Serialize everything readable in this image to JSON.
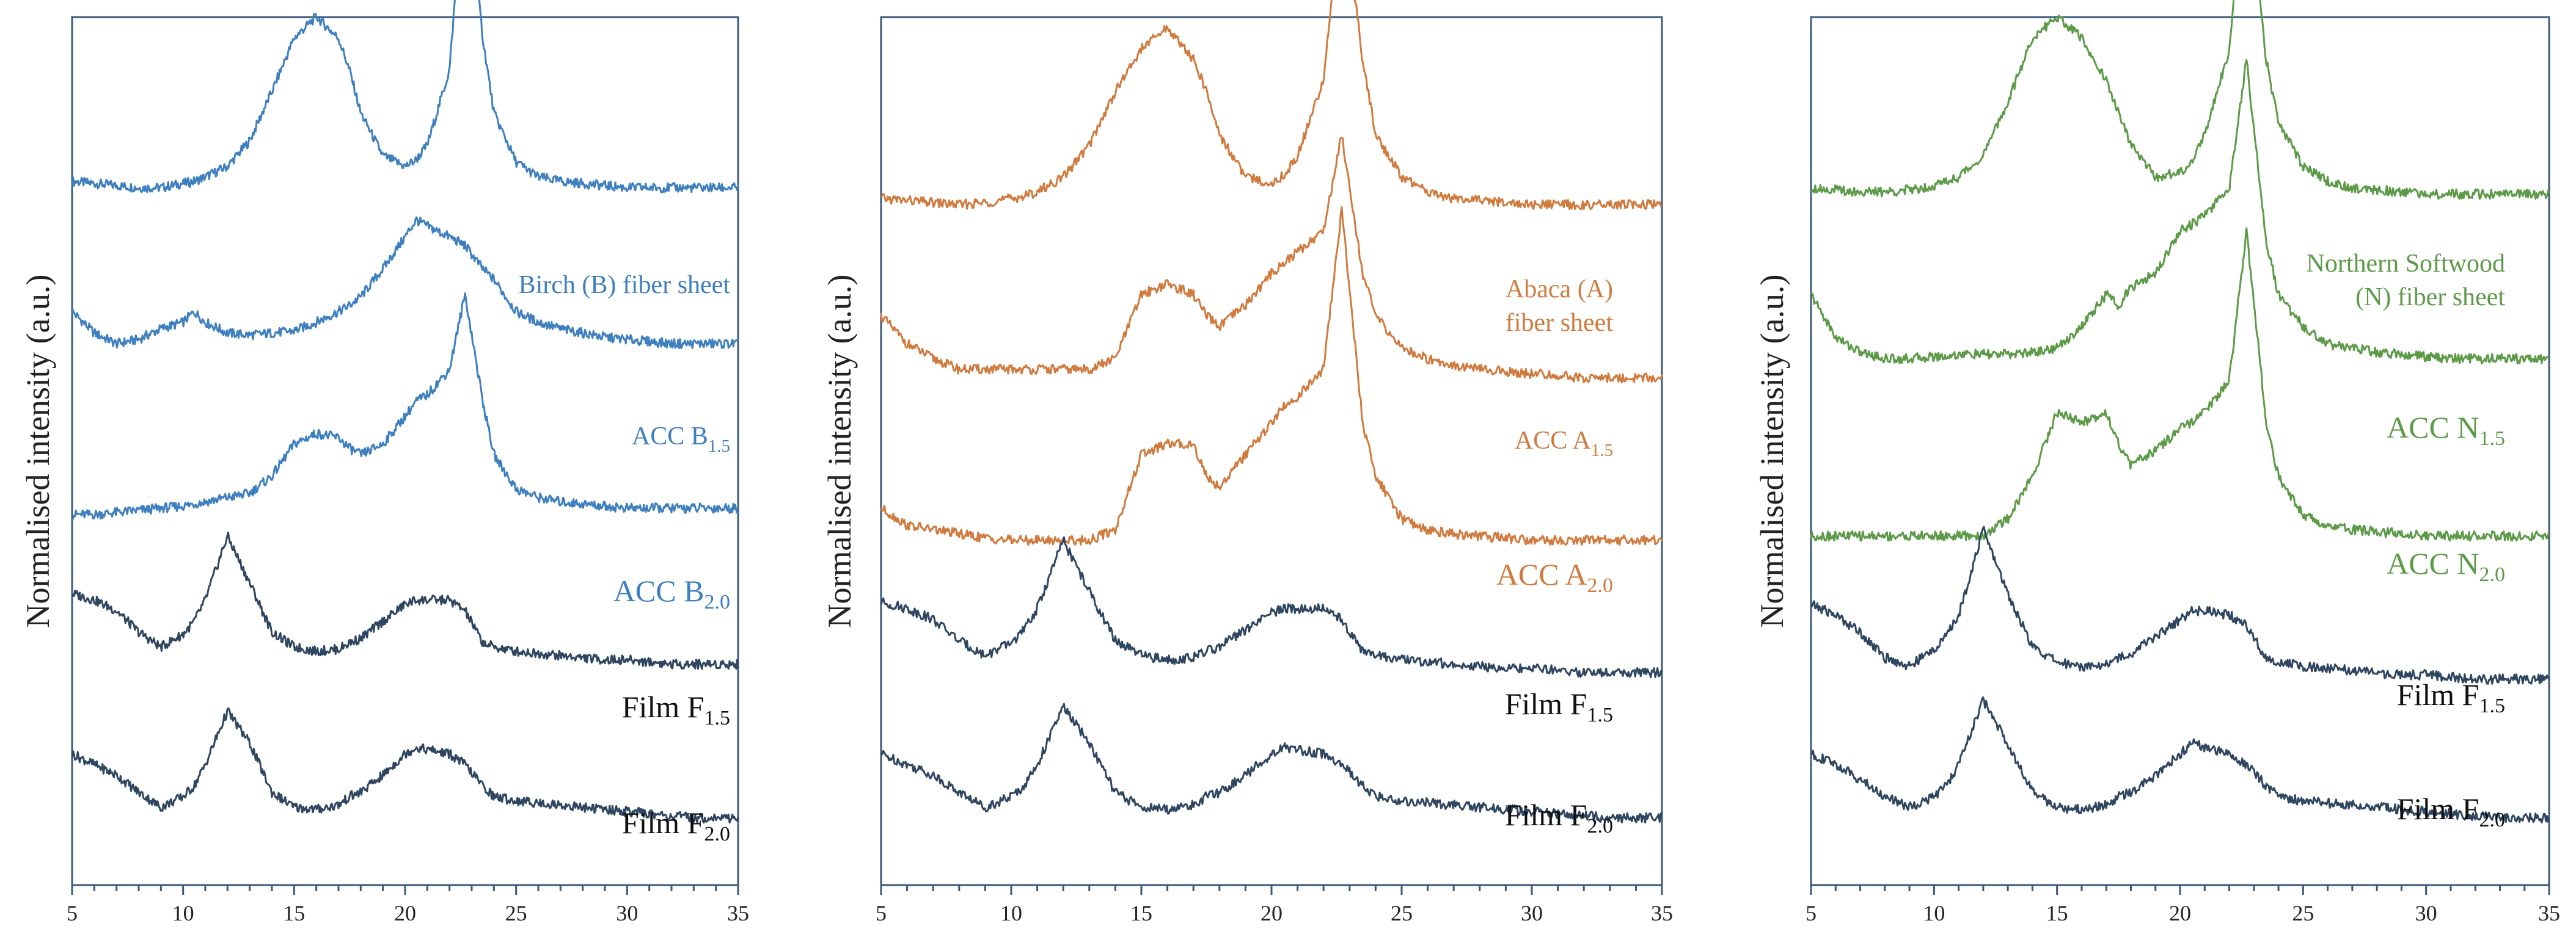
{
  "chart_data": [
    {
      "type": "line",
      "panel": "birch",
      "ylabel": "Normalised intensity (a.u.)",
      "xlabel": "",
      "xlim": [
        5,
        35
      ],
      "xticks": [
        5,
        10,
        15,
        20,
        25,
        30,
        35
      ],
      "x": [
        5,
        6,
        7,
        8,
        9,
        10,
        10.5,
        11,
        12,
        13,
        14,
        15,
        16,
        17,
        17.5,
        18,
        19,
        20,
        20.5,
        21,
        22,
        22.7,
        23.5,
        24,
        25,
        26,
        27,
        28,
        29,
        30,
        31,
        32,
        33,
        34,
        35
      ],
      "series": [
        {
          "name": "Birch (B) fiber sheet",
          "label_main": "Birch (B) fiber sheet",
          "label_sub": "",
          "label_size": "small",
          "color": "#3e7fbf",
          "offset": 3.15,
          "values": [
            0.03,
            0.02,
            0.01,
            0.0,
            0.0,
            0.02,
            0.03,
            0.05,
            0.1,
            0.22,
            0.45,
            0.7,
            0.8,
            0.7,
            0.55,
            0.35,
            0.15,
            0.1,
            0.13,
            0.2,
            0.55,
            1.5,
            0.7,
            0.35,
            0.12,
            0.05,
            0.03,
            0.02,
            0.01,
            0.0,
            0.0,
            0.0,
            0.0,
            0.0,
            0.0
          ]
        },
        {
          "name": "ACC B1.5",
          "label_main": "ACC B",
          "label_sub": "1.5",
          "label_size": "small",
          "color": "#3e7fbf",
          "offset": 2.42,
          "values": [
            0.15,
            0.05,
            0.0,
            0.02,
            0.07,
            0.1,
            0.15,
            0.1,
            0.05,
            0.04,
            0.05,
            0.06,
            0.1,
            0.15,
            0.18,
            0.22,
            0.35,
            0.5,
            0.58,
            0.55,
            0.5,
            0.46,
            0.35,
            0.3,
            0.15,
            0.1,
            0.07,
            0.05,
            0.03,
            0.02,
            0.01,
            0.0,
            0.0,
            0.0,
            0.0
          ]
        },
        {
          "name": "ACC B2.0",
          "label_main": "ACC B",
          "label_sub": "2.0",
          "label_size": "large",
          "color": "#3e7fbf",
          "offset": 1.6,
          "values": [
            0.02,
            0.02,
            0.03,
            0.04,
            0.05,
            0.06,
            0.07,
            0.08,
            0.1,
            0.12,
            0.2,
            0.35,
            0.4,
            0.38,
            0.33,
            0.3,
            0.35,
            0.48,
            0.55,
            0.58,
            0.7,
            1.05,
            0.55,
            0.3,
            0.14,
            0.1,
            0.08,
            0.07,
            0.06,
            0.05,
            0.05,
            0.05,
            0.05,
            0.05,
            0.05
          ]
        },
        {
          "name": "Film F1.5",
          "label_main": "Film F",
          "label_sub": "1.5",
          "label_size": "large",
          "color": "#2f4661",
          "offset": 0.92,
          "values": [
            0.33,
            0.3,
            0.25,
            0.15,
            0.08,
            0.14,
            0.2,
            0.3,
            0.6,
            0.38,
            0.15,
            0.08,
            0.06,
            0.07,
            0.1,
            0.12,
            0.2,
            0.28,
            0.3,
            0.3,
            0.3,
            0.25,
            0.1,
            0.08,
            0.06,
            0.05,
            0.04,
            0.03,
            0.02,
            0.02,
            0.01,
            0.0,
            0.0,
            0.0,
            0.0
          ]
        },
        {
          "name": "Film F2.0",
          "label_main": "Film F",
          "label_sub": "2.0",
          "label_size": "large",
          "color": "#2f4661",
          "offset": 0.2,
          "values": [
            0.3,
            0.25,
            0.2,
            0.12,
            0.05,
            0.1,
            0.15,
            0.25,
            0.5,
            0.35,
            0.12,
            0.05,
            0.04,
            0.06,
            0.1,
            0.12,
            0.2,
            0.3,
            0.33,
            0.32,
            0.3,
            0.25,
            0.15,
            0.1,
            0.08,
            0.07,
            0.06,
            0.05,
            0.04,
            0.03,
            0.02,
            0.01,
            0.0,
            0.0,
            0.0
          ]
        }
      ]
    },
    {
      "type": "line",
      "panel": "abaca",
      "ylabel": "Normalised intensity (a.u.)",
      "xlabel": "",
      "xlim": [
        5,
        35
      ],
      "xticks": [
        5,
        10,
        15,
        20,
        25,
        30,
        35
      ],
      "x": [
        5,
        6,
        7,
        8,
        9,
        10,
        10.5,
        11,
        12,
        13,
        14,
        15,
        16,
        17,
        17.5,
        18,
        19,
        20,
        20.5,
        21,
        22,
        22.7,
        23.5,
        24,
        25,
        26,
        27,
        28,
        29,
        30,
        31,
        32,
        33,
        34,
        35
      ],
      "series": [
        {
          "name": "Abaca (A) fiber sheet",
          "label_main": "Abaca (A)",
          "label_line2": "fiber sheet",
          "label_sub": "",
          "label_size": "small",
          "color": "#d07a3e",
          "offset": 3.05,
          "values": [
            0.05,
            0.04,
            0.03,
            0.02,
            0.03,
            0.05,
            0.06,
            0.08,
            0.15,
            0.3,
            0.55,
            0.75,
            0.85,
            0.7,
            0.55,
            0.35,
            0.15,
            0.12,
            0.16,
            0.25,
            0.6,
            1.5,
            0.7,
            0.35,
            0.15,
            0.08,
            0.05,
            0.04,
            0.03,
            0.02,
            0.02,
            0.02,
            0.02,
            0.02,
            0.02
          ]
        },
        {
          "name": "ACC A1.5",
          "label_main": "ACC A",
          "label_sub": "1.5",
          "label_size": "small",
          "color": "#d07a3e",
          "offset": 2.2,
          "values": [
            0.35,
            0.22,
            0.15,
            0.1,
            0.1,
            0.1,
            0.1,
            0.1,
            0.1,
            0.1,
            0.15,
            0.45,
            0.5,
            0.45,
            0.35,
            0.3,
            0.4,
            0.55,
            0.6,
            0.65,
            0.75,
            1.2,
            0.55,
            0.35,
            0.2,
            0.15,
            0.12,
            0.1,
            0.09,
            0.08,
            0.07,
            0.06,
            0.06,
            0.06,
            0.06
          ]
        },
        {
          "name": "ACC A2.0",
          "label_main": "ACC A",
          "label_sub": "2.0",
          "label_size": "large",
          "color": "#d07a3e",
          "offset": 1.45,
          "values": [
            0.2,
            0.12,
            0.1,
            0.08,
            0.06,
            0.05,
            0.05,
            0.05,
            0.05,
            0.05,
            0.1,
            0.45,
            0.5,
            0.5,
            0.35,
            0.3,
            0.45,
            0.6,
            0.68,
            0.72,
            0.85,
            1.6,
            0.6,
            0.35,
            0.15,
            0.1,
            0.08,
            0.07,
            0.06,
            0.05,
            0.05,
            0.05,
            0.05,
            0.05,
            0.05
          ]
        },
        {
          "name": "Film F1.5",
          "label_main": "Film F",
          "label_sub": "1.5",
          "label_size": "large",
          "color": "#2f4661",
          "offset": 0.88,
          "values": [
            0.33,
            0.3,
            0.25,
            0.15,
            0.08,
            0.14,
            0.2,
            0.3,
            0.62,
            0.38,
            0.15,
            0.08,
            0.06,
            0.07,
            0.1,
            0.12,
            0.2,
            0.28,
            0.3,
            0.3,
            0.3,
            0.25,
            0.1,
            0.08,
            0.06,
            0.05,
            0.04,
            0.03,
            0.02,
            0.02,
            0.01,
            0.0,
            0.0,
            0.0,
            0.0
          ]
        },
        {
          "name": "Film F2.0",
          "label_main": "Film F",
          "label_sub": "2.0",
          "label_size": "large",
          "color": "#2f4661",
          "offset": 0.2,
          "values": [
            0.3,
            0.25,
            0.2,
            0.12,
            0.05,
            0.1,
            0.15,
            0.25,
            0.52,
            0.35,
            0.12,
            0.05,
            0.04,
            0.06,
            0.1,
            0.12,
            0.2,
            0.3,
            0.33,
            0.32,
            0.3,
            0.25,
            0.15,
            0.1,
            0.08,
            0.07,
            0.06,
            0.05,
            0.04,
            0.03,
            0.02,
            0.01,
            0.0,
            0.0,
            0.0
          ]
        }
      ]
    },
    {
      "type": "line",
      "panel": "northern-softwood",
      "ylabel": "Normalised intensity (a.u.)",
      "xlabel": "",
      "xlim": [
        5,
        35
      ],
      "xticks": [
        5,
        10,
        15,
        20,
        25,
        30,
        35
      ],
      "x": [
        5,
        6,
        7,
        8,
        9,
        10,
        10.5,
        11,
        12,
        13,
        14,
        15,
        16,
        17,
        17.5,
        18,
        19,
        20,
        20.5,
        21,
        22,
        22.7,
        23.5,
        24,
        25,
        26,
        27,
        28,
        29,
        30,
        31,
        32,
        33,
        34,
        35
      ],
      "series": [
        {
          "name": "Northern Softwood (N) fiber sheet",
          "label_main": "Northern Softwood",
          "label_line2": "(N) fiber sheet",
          "label_sub": "",
          "label_size": "small",
          "color": "#5c9a48",
          "offset": 3.1,
          "values": [
            0.05,
            0.04,
            0.03,
            0.03,
            0.04,
            0.06,
            0.08,
            0.1,
            0.2,
            0.45,
            0.75,
            0.85,
            0.75,
            0.55,
            0.4,
            0.25,
            0.1,
            0.12,
            0.18,
            0.3,
            0.7,
            1.55,
            0.65,
            0.35,
            0.15,
            0.08,
            0.05,
            0.04,
            0.03,
            0.02,
            0.02,
            0.02,
            0.02,
            0.02,
            0.02
          ]
        },
        {
          "name": "ACC N1.5",
          "label_main": "ACC N",
          "label_sub": "1.5",
          "label_size": "large",
          "color": "#5c9a48",
          "offset": 2.3,
          "values": [
            0.35,
            0.15,
            0.08,
            0.05,
            0.05,
            0.06,
            0.06,
            0.07,
            0.07,
            0.07,
            0.08,
            0.1,
            0.2,
            0.35,
            0.3,
            0.38,
            0.45,
            0.65,
            0.68,
            0.72,
            0.85,
            1.45,
            0.6,
            0.35,
            0.2,
            0.12,
            0.1,
            0.08,
            0.07,
            0.06,
            0.05,
            0.05,
            0.05,
            0.05,
            0.05
          ]
        },
        {
          "name": "ACC N2.0",
          "label_main": "ACC N",
          "label_sub": "2.0",
          "label_size": "large",
          "color": "#5c9a48",
          "offset": 1.5,
          "values": [
            0.02,
            0.02,
            0.02,
            0.02,
            0.02,
            0.02,
            0.02,
            0.02,
            0.02,
            0.1,
            0.3,
            0.6,
            0.55,
            0.6,
            0.45,
            0.35,
            0.42,
            0.52,
            0.55,
            0.6,
            0.75,
            1.45,
            0.55,
            0.3,
            0.12,
            0.07,
            0.05,
            0.04,
            0.03,
            0.02,
            0.02,
            0.02,
            0.02,
            0.02,
            0.02
          ]
        },
        {
          "name": "Film F1.5",
          "label_main": "Film F",
          "label_sub": "1.5",
          "label_size": "large",
          "color": "#2f4661",
          "offset": 0.85,
          "values": [
            0.35,
            0.3,
            0.22,
            0.1,
            0.06,
            0.14,
            0.2,
            0.3,
            0.7,
            0.4,
            0.15,
            0.08,
            0.06,
            0.07,
            0.1,
            0.12,
            0.2,
            0.28,
            0.32,
            0.32,
            0.3,
            0.25,
            0.1,
            0.08,
            0.06,
            0.05,
            0.04,
            0.03,
            0.02,
            0.02,
            0.01,
            0.0,
            0.0,
            0.0,
            0.0
          ]
        },
        {
          "name": "Film F2.0",
          "label_main": "Film F",
          "label_sub": "2.0",
          "label_size": "large",
          "color": "#2f4661",
          "offset": 0.2,
          "values": [
            0.3,
            0.25,
            0.18,
            0.1,
            0.05,
            0.1,
            0.15,
            0.25,
            0.55,
            0.35,
            0.12,
            0.05,
            0.04,
            0.06,
            0.1,
            0.12,
            0.2,
            0.3,
            0.35,
            0.33,
            0.3,
            0.25,
            0.15,
            0.1,
            0.08,
            0.07,
            0.06,
            0.05,
            0.04,
            0.03,
            0.02,
            0.01,
            0.0,
            0.0,
            0.0
          ]
        }
      ]
    }
  ]
}
